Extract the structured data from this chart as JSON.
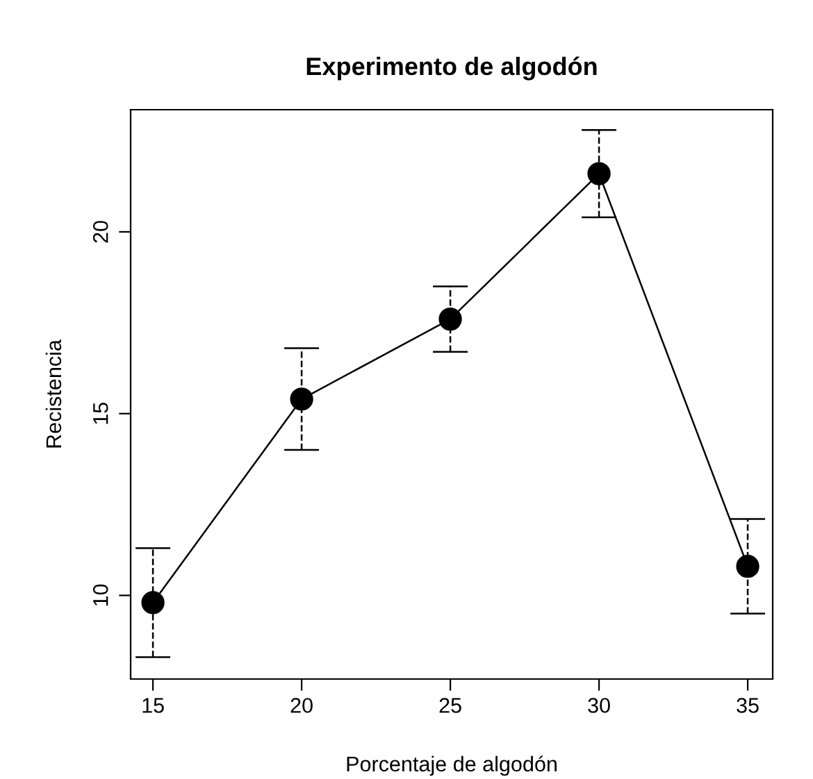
{
  "chart_data": {
    "type": "line",
    "title": "Experimento de algodón",
    "xlabel": "Porcentaje de algodón",
    "ylabel": "Recistencia",
    "x": [
      15,
      20,
      25,
      30,
      35
    ],
    "series": [
      {
        "color": "#000000",
        "values": [
          9.8,
          15.4,
          17.6,
          21.6,
          10.8
        ],
        "errors": [
          1.5,
          1.4,
          0.9,
          1.2,
          1.3
        ]
      }
    ],
    "xlim": [
      14.25,
      35.84
    ],
    "ylim": [
      7.7,
      23.36
    ],
    "xticks": [
      15,
      20,
      25,
      30,
      35
    ],
    "yticks": [
      10,
      15,
      20
    ],
    "marker": "circle",
    "line_style": "solid",
    "grid": false,
    "legend": false
  }
}
